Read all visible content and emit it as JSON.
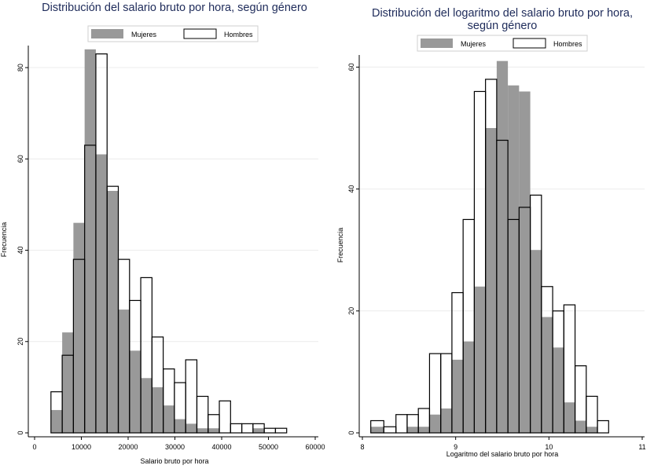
{
  "chart_data": [
    {
      "type": "bar",
      "subtype": "overlaid-histogram",
      "title": "Distribución del salario bruto por hora, según género",
      "xlabel": "Salario bruto por hora",
      "ylabel": "Frecuencia",
      "xlim": [
        0,
        60000
      ],
      "ylim": [
        0,
        84
      ],
      "xticks": [
        0,
        10000,
        20000,
        30000,
        40000,
        50000,
        60000
      ],
      "xtick_labels": [
        "0",
        "10000",
        "20000",
        "30000",
        "40000",
        "50000",
        "60000"
      ],
      "yticks": [
        0,
        20,
        40,
        60,
        80
      ],
      "ytick_labels": [
        "0",
        "20",
        "40",
        "60",
        "80"
      ],
      "grid": true,
      "legend": "top-center",
      "legend_labels": [
        "Mujeres",
        "Hombres"
      ],
      "bin_edges": [
        3500,
        5900,
        8300,
        10700,
        13100,
        15500,
        17900,
        20300,
        22700,
        25100,
        27500,
        29900,
        32300,
        34700,
        37100,
        39500,
        41900,
        44300,
        46700,
        49100,
        51500,
        53900,
        56300
      ],
      "series": [
        {
          "name": "Mujeres",
          "values": [
            5,
            22,
            46,
            84,
            61,
            53,
            27,
            18,
            12,
            10,
            6,
            3,
            2,
            1,
            1,
            0,
            0,
            0,
            1
          ],
          "style": "filled",
          "color": "#999999"
        },
        {
          "name": "Hombres",
          "values": [
            9,
            17,
            38,
            63,
            83,
            54,
            38,
            29,
            34,
            21,
            14,
            11,
            16,
            8,
            4,
            7,
            2,
            2,
            2,
            1,
            1,
            0
          ],
          "style": "outline",
          "color": "#000000"
        }
      ]
    },
    {
      "type": "bar",
      "subtype": "overlaid-histogram",
      "title": "Distribución del logaritmo del salario bruto por hora, según género",
      "xlabel": "Logaritmo del salario bruto por hora",
      "ylabel": "Frecuencia",
      "xlim": [
        8,
        11
      ],
      "ylim": [
        0,
        61
      ],
      "xticks": [
        8,
        9,
        10,
        11
      ],
      "xtick_labels": [
        "8",
        "9",
        "10",
        "11"
      ],
      "yticks": [
        0,
        20,
        40,
        60
      ],
      "ytick_labels": [
        "0",
        "20",
        "40",
        "60"
      ],
      "grid": true,
      "legend": "top-center",
      "legend_labels": [
        "Mujeres",
        "Hombres"
      ],
      "bin_edges": [
        8.09,
        8.23,
        8.36,
        8.48,
        8.6,
        8.72,
        8.84,
        8.96,
        9.08,
        9.2,
        9.32,
        9.44,
        9.56,
        9.68,
        9.8,
        9.92,
        10.04,
        10.16,
        10.28,
        10.4,
        10.52,
        10.64,
        10.76,
        10.88,
        10.98
      ],
      "series": [
        {
          "name": "Mujeres",
          "values": [
            1,
            0,
            0,
            1,
            1,
            3,
            4,
            12,
            15,
            24,
            50,
            61,
            57,
            56,
            30,
            19,
            14,
            5,
            2,
            1
          ],
          "style": "filled",
          "color": "#999999",
          "start_bin": 0,
          "bins_used": [
            0,
            1,
            2,
            3,
            4,
            5,
            6,
            7,
            8,
            9,
            10,
            11,
            12,
            13,
            14,
            15,
            16,
            17,
            18,
            19
          ]
        },
        {
          "name": "Hombres",
          "values": [
            2,
            1,
            3,
            3,
            4,
            13,
            13,
            23,
            35,
            56,
            58,
            48,
            35,
            37,
            39,
            24,
            20,
            21,
            11,
            6,
            2
          ],
          "style": "outline",
          "color": "#000000"
        }
      ]
    }
  ]
}
